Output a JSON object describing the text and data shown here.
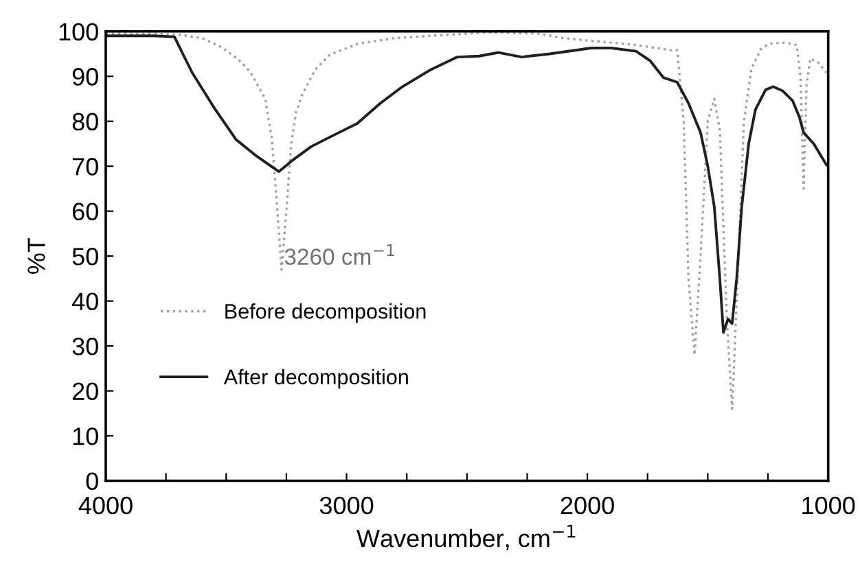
{
  "chart_data": {
    "type": "line",
    "xlabel": "Wavenumber, cm$^{−1}$",
    "ylabel": "%T",
    "xlim": [
      4000,
      1000
    ],
    "ylim": [
      0,
      100
    ],
    "xticks": [
      4000,
      {
        "value": 3750,
        "label": null
      },
      {
        "value": 3500,
        "label": null
      },
      {
        "value": 3250,
        "label": null
      },
      3000,
      {
        "value": 2750,
        "label": null
      },
      {
        "value": 2500,
        "label": null
      },
      {
        "value": 2250,
        "label": null
      },
      2000,
      {
        "value": 1750,
        "label": null
      },
      {
        "value": 1500,
        "label": null
      },
      {
        "value": 1250,
        "label": null
      },
      1000
    ],
    "yticks": [
      0,
      10,
      20,
      30,
      40,
      50,
      60,
      70,
      80,
      90,
      100
    ],
    "grid": false,
    "legend": "left",
    "marker": "none",
    "annotations": [
      {
        "text": "3260 cm$^{−1}$",
        "x": 3260,
        "y": 47
      }
    ],
    "series": [
      {
        "name": "Before decomposition",
        "color": "#a0a0a0",
        "line_style": "dotted",
        "x": [
          4000,
          3800,
          3700,
          3600,
          3520,
          3452,
          3400,
          3338,
          3310,
          3290,
          3270,
          3250,
          3230,
          3210,
          3184,
          3130,
          3070,
          2950,
          2800,
          2600,
          2400,
          2200,
          2100,
          2000,
          1900,
          1800,
          1700,
          1650,
          1627,
          1600,
          1580,
          1555,
          1530,
          1500,
          1473,
          1450,
          1420,
          1399,
          1380,
          1350,
          1319,
          1280,
          1245,
          1180,
          1131,
          1115,
          1102,
          1090,
          1074,
          1040,
          1007
        ],
        "values": [
          99.5,
          99.5,
          99.3,
          98.5,
          96.5,
          93.9,
          91,
          85,
          76,
          62,
          47,
          60,
          75,
          82,
          86,
          91.5,
          94.8,
          97.3,
          98.5,
          99.2,
          99.8,
          99.5,
          98.5,
          98,
          97.5,
          97,
          96.2,
          95.8,
          95.8,
          80,
          45,
          28,
          50,
          80,
          85,
          78,
          35,
          16,
          40,
          80,
          91.7,
          96,
          97.3,
          97.5,
          97,
          90,
          65,
          88,
          94,
          93,
          90.8
        ]
      },
      {
        "name": "After decomposition",
        "color": "#202020",
        "line_style": "solid",
        "x": [
          4000,
          3800,
          3715,
          3680,
          3641,
          3545,
          3460,
          3380,
          3281,
          3220,
          3146,
          3050,
          2956,
          2860,
          2768,
          2650,
          2540,
          2450,
          2369,
          2272,
          2157,
          2050,
          1986,
          1900,
          1798,
          1740,
          1684,
          1627,
          1580,
          1530,
          1500,
          1473,
          1450,
          1435,
          1416,
          1399,
          1380,
          1359,
          1330,
          1302,
          1260,
          1228,
          1190,
          1148,
          1120,
          1102,
          1060,
          1007
        ],
        "values": [
          99,
          99,
          98.8,
          95,
          90.8,
          82.6,
          76,
          72.5,
          68.8,
          71.5,
          74.4,
          77,
          79.5,
          84,
          87.7,
          91.5,
          94.3,
          94.5,
          95.3,
          94.3,
          95,
          95.8,
          96.3,
          96.3,
          95.6,
          93.5,
          89.7,
          88.7,
          84,
          77.5,
          70,
          61,
          45,
          33,
          36,
          35,
          45,
          61,
          75,
          82.6,
          87,
          87.7,
          86.8,
          84.6,
          81,
          77.5,
          75,
          70.3
        ]
      }
    ]
  }
}
